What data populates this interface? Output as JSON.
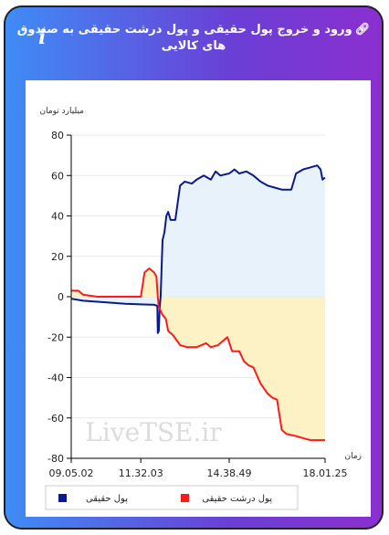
{
  "header": {
    "title": "ورود و خروج پول حقیقی و پول درشت حقیقی به صندوق های کالایی",
    "link_icon": "link-icon",
    "info_icon": "info-icon",
    "info_glyph": "i"
  },
  "watermark": "LiveTSE.ir",
  "colors": {
    "retail_line": "#0a1a8c",
    "retail_fill": "#e6f1fa",
    "big_line": "#ff1a1a",
    "big_fill": "#fcf1c2"
  },
  "chart_data": {
    "type": "area",
    "ylabel": "میلیارد تومان",
    "xlabel": "زمان",
    "ylim": [
      -80,
      80
    ],
    "yticks": [
      -80,
      -60,
      -40,
      -20,
      0,
      20,
      40,
      60,
      80
    ],
    "xlim": [
      "09:05:02",
      "18:01:25"
    ],
    "xtick_labels": [
      "09.05.02",
      "11.32.03",
      "14.38.49",
      "18.01.25"
    ],
    "xtick_positions": [
      "09:05:02",
      "11:32:03",
      "14:38:49",
      "18:01:25"
    ],
    "legend": [
      "پول حقیقی",
      "پول درشت حقیقی"
    ],
    "series": [
      {
        "name": "پول حقیقی",
        "color": "#0a1a8c",
        "points": [
          [
            "09:05:02",
            -1
          ],
          [
            "09:30:00",
            -2
          ],
          [
            "10:00:00",
            -2.5
          ],
          [
            "10:30:00",
            -3
          ],
          [
            "11:00:00",
            -3.5
          ],
          [
            "11:32:03",
            -3.8
          ],
          [
            "11:55:00",
            -4
          ],
          [
            "12:00:00",
            -4
          ],
          [
            "12:07:00",
            -4.5
          ],
          [
            "12:08:00",
            -18
          ],
          [
            "12:10:00",
            -17
          ],
          [
            "12:12:00",
            -5
          ],
          [
            "12:14:00",
            0
          ],
          [
            "12:18:00",
            28
          ],
          [
            "12:22:00",
            32
          ],
          [
            "12:26:00",
            40
          ],
          [
            "12:30:00",
            42
          ],
          [
            "12:35:00",
            38
          ],
          [
            "12:45:00",
            38
          ],
          [
            "12:55:00",
            55
          ],
          [
            "13:05:00",
            57
          ],
          [
            "13:20:00",
            56
          ],
          [
            "13:30:00",
            58
          ],
          [
            "13:45:00",
            60
          ],
          [
            "14:00:00",
            58
          ],
          [
            "14:10:00",
            62
          ],
          [
            "14:20:00",
            60
          ],
          [
            "14:38:49",
            61
          ],
          [
            "14:50:00",
            63
          ],
          [
            "15:00:00",
            61
          ],
          [
            "15:15:00",
            62
          ],
          [
            "15:30:00",
            60
          ],
          [
            "15:45:00",
            57
          ],
          [
            "16:00:00",
            55
          ],
          [
            "16:15:00",
            54
          ],
          [
            "16:30:00",
            53
          ],
          [
            "16:50:00",
            53
          ],
          [
            "17:00:00",
            61
          ],
          [
            "17:15:00",
            63
          ],
          [
            "17:30:00",
            64
          ],
          [
            "17:45:00",
            65
          ],
          [
            "17:52:00",
            63
          ],
          [
            "17:56:00",
            58
          ],
          [
            "18:01:25",
            59
          ]
        ]
      },
      {
        "name": "پول درشت حقیقی",
        "color": "#ff1a1a",
        "points": [
          [
            "09:05:02",
            3
          ],
          [
            "09:20:00",
            3
          ],
          [
            "09:30:00",
            1
          ],
          [
            "10:00:00",
            0
          ],
          [
            "10:30:00",
            0
          ],
          [
            "11:00:00",
            0
          ],
          [
            "11:20:00",
            0
          ],
          [
            "11:32:03",
            0
          ],
          [
            "11:40:00",
            12
          ],
          [
            "11:50:00",
            14
          ],
          [
            "12:00:00",
            12
          ],
          [
            "12:05:00",
            10
          ],
          [
            "12:08:00",
            0
          ],
          [
            "12:10:00",
            -5
          ],
          [
            "12:18:00",
            -9
          ],
          [
            "12:25:00",
            -11
          ],
          [
            "12:30:00",
            -17
          ],
          [
            "12:40:00",
            -19
          ],
          [
            "12:55:00",
            -24
          ],
          [
            "13:10:00",
            -25
          ],
          [
            "13:30:00",
            -25
          ],
          [
            "13:50:00",
            -23
          ],
          [
            "14:00:00",
            -25
          ],
          [
            "14:15:00",
            -24
          ],
          [
            "14:25:00",
            -22
          ],
          [
            "14:35:00",
            -20
          ],
          [
            "14:45:00",
            -27
          ],
          [
            "15:00:00",
            -27
          ],
          [
            "15:10:00",
            -32
          ],
          [
            "15:20:00",
            -34
          ],
          [
            "15:30:00",
            -35
          ],
          [
            "15:45:00",
            -43
          ],
          [
            "16:00:00",
            -48
          ],
          [
            "16:10:00",
            -50
          ],
          [
            "16:20:00",
            -51
          ],
          [
            "16:30:00",
            -66
          ],
          [
            "16:40:00",
            -68
          ],
          [
            "17:00:00",
            -69
          ],
          [
            "17:15:00",
            -70
          ],
          [
            "17:30:00",
            -71
          ],
          [
            "18:01:25",
            -71
          ]
        ]
      }
    ]
  }
}
